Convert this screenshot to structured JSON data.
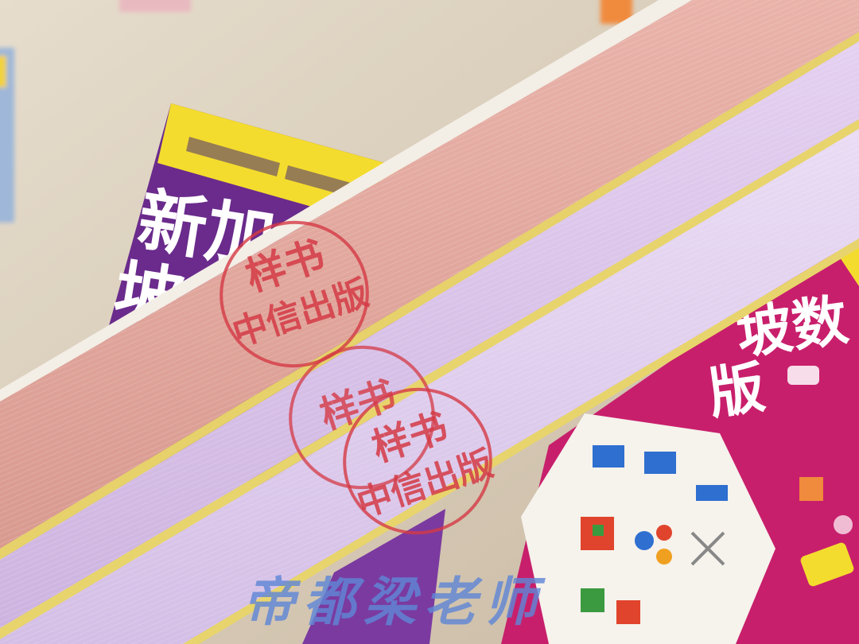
{
  "scene": {
    "left_book": {
      "title_line_1": "新加",
      "title_line_2": "坡"
    },
    "right_book": {
      "title_line_1": "坡数",
      "title_line_2": "版"
    },
    "stamps": [
      {
        "line_1": "样书",
        "line_2": "中信出版"
      },
      {
        "line_1": "样书",
        "line_2": ""
      },
      {
        "line_1": "样书",
        "line_2": "中信出版"
      }
    ],
    "watermark": "帝都梁老师"
  },
  "colors": {
    "table": "#d8cbb8",
    "pink_book_edge": "#e3a69c",
    "lilac_book_edge": "#ddc6ec",
    "yellow_band": "#f4dc2e",
    "purple_cover": "#6a2b8c",
    "magenta_cover": "#c81f6c",
    "stamp_red": "#d43a45",
    "watermark_blue": "#5f86d6"
  },
  "icons": [
    "book-cover",
    "round-stamp",
    "hexagon-activity-card"
  ]
}
